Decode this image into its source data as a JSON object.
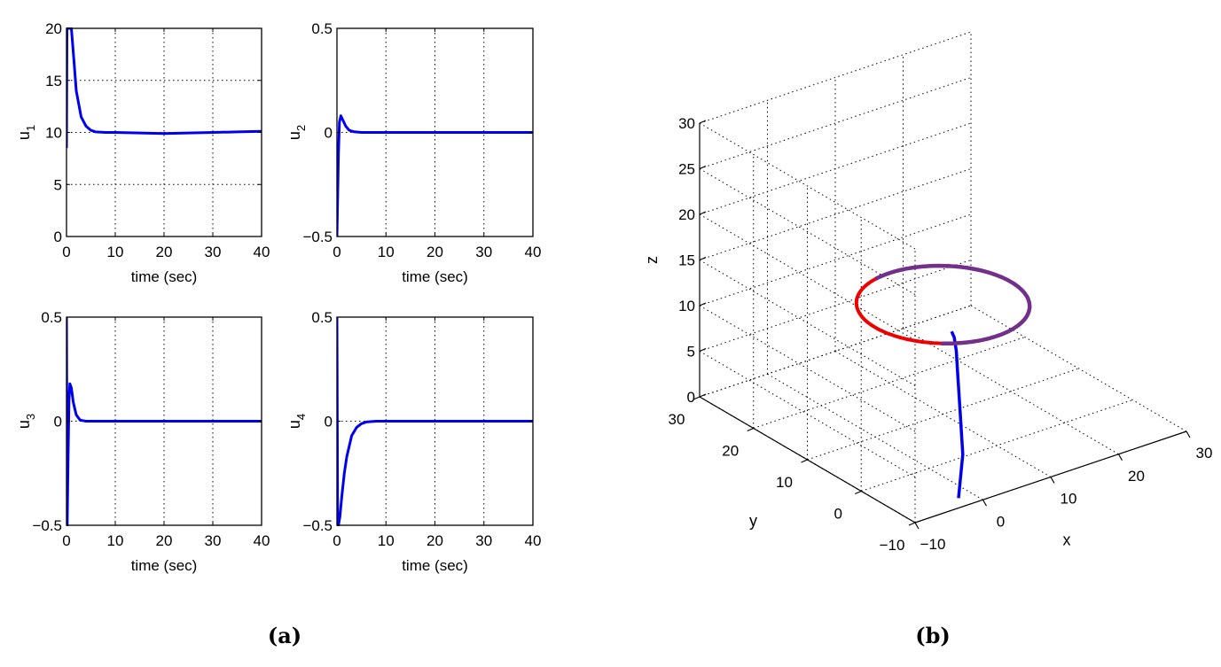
{
  "captions": {
    "a": "(a)",
    "b": "(b)"
  },
  "colors": {
    "line": "#0000ee",
    "red": "#ee0000",
    "purple": "#73308a",
    "grid": "#000000"
  },
  "chart_data": [
    {
      "type": "line",
      "id": "u1",
      "ylabel": "u1",
      "xlabel": "time (sec)",
      "xlim": [
        0,
        40
      ],
      "ylim": [
        0,
        20
      ],
      "xticks": [
        0,
        10,
        20,
        30,
        40
      ],
      "yticks": [
        0,
        5,
        10,
        15,
        20
      ],
      "grid": true,
      "x": [
        0,
        0.1,
        0.3,
        0.5,
        1,
        1.5,
        2,
        3,
        4,
        5,
        6,
        8,
        10,
        15,
        20,
        25,
        30,
        35,
        40
      ],
      "values": [
        8.5,
        20,
        20,
        20,
        20,
        17,
        14,
        11.5,
        10.6,
        10.2,
        10.05,
        10,
        10,
        9.95,
        9.9,
        9.95,
        10,
        10.05,
        10.1
      ]
    },
    {
      "type": "line",
      "id": "u2",
      "ylabel": "u2",
      "xlabel": "time (sec)",
      "xlim": [
        0,
        40
      ],
      "ylim": [
        -0.5,
        0.5
      ],
      "xticks": [
        0,
        10,
        20,
        30,
        40
      ],
      "yticks": [
        -0.5,
        0,
        0.5
      ],
      "grid": true,
      "x": [
        0,
        0.3,
        0.5,
        0.8,
        1.2,
        1.8,
        2.5,
        3.5,
        5,
        10,
        20,
        30,
        40
      ],
      "values": [
        -0.5,
        -0.1,
        0.05,
        0.08,
        0.06,
        0.03,
        0.01,
        0.003,
        0,
        0,
        0,
        0,
        0
      ]
    },
    {
      "type": "line",
      "id": "u3",
      "ylabel": "u3",
      "xlabel": "time (sec)",
      "xlim": [
        0,
        40
      ],
      "ylim": [
        -0.5,
        0.5
      ],
      "xticks": [
        0,
        10,
        20,
        30,
        40
      ],
      "yticks": [
        -0.5,
        0,
        0.5
      ],
      "grid": true,
      "x": [
        0,
        0.15,
        0.3,
        0.5,
        0.7,
        1,
        1.4,
        2,
        2.8,
        4,
        6,
        10,
        20,
        30,
        40
      ],
      "values": [
        0.5,
        -0.5,
        -0.2,
        0.1,
        0.18,
        0.16,
        0.09,
        0.03,
        0.005,
        0,
        0,
        0,
        0,
        0,
        0
      ]
    },
    {
      "type": "line",
      "id": "u4",
      "ylabel": "u4",
      "xlabel": "time (sec)",
      "xlim": [
        0,
        40
      ],
      "ylim": [
        -0.5,
        0.5
      ],
      "xticks": [
        0,
        10,
        20,
        30,
        40
      ],
      "yticks": [
        -0.5,
        0,
        0.5
      ],
      "grid": true,
      "x": [
        0,
        0.15,
        0.3,
        0.6,
        1,
        1.5,
        2,
        3,
        4,
        5,
        6,
        8,
        10,
        20,
        30,
        40
      ],
      "values": [
        0.5,
        -0.5,
        -0.5,
        -0.46,
        -0.36,
        -0.25,
        -0.17,
        -0.07,
        -0.03,
        -0.012,
        -0.004,
        0,
        0,
        0,
        0,
        0
      ]
    },
    {
      "type": "line3d",
      "id": "trajectory",
      "xlabel": "x",
      "ylabel": "y",
      "zlabel": "z",
      "xlim": [
        -10,
        30
      ],
      "ylim": [
        -10,
        30
      ],
      "zlim": [
        0,
        30
      ],
      "xticks": [
        -10,
        0,
        10,
        20,
        30
      ],
      "yticks": [
        -10,
        0,
        10,
        20,
        30
      ],
      "zticks": [
        0,
        5,
        10,
        15,
        20,
        25,
        30
      ],
      "grid": true,
      "approach": {
        "x": [
          -2,
          1,
          3,
          5,
          6,
          6.5,
          6.5
        ],
        "y": [
          -8,
          -5,
          -2,
          1,
          2.5,
          3.5,
          4
        ],
        "z": [
          0,
          3,
          6,
          9,
          10.5,
          11.5,
          12
        ]
      },
      "circle": {
        "cx": 10,
        "cy": 10,
        "z": 12,
        "radius": 10
      }
    }
  ]
}
